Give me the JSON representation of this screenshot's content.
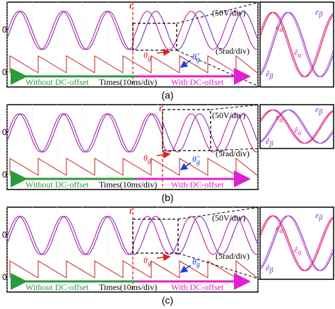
{
  "panels": [
    {
      "caption": "(a)",
      "zero_labels": [
        "0",
        "0"
      ],
      "t_label": "t",
      "voltage_scale": "(50V/div)",
      "angle_scale": "(5rad/div)",
      "theta": {
        "symbol": "θ",
        "sub": "g"
      },
      "theta_hat": {
        "symbol": "θ̂",
        "sub": "g"
      },
      "left_label": "Without DC-offset",
      "time_scale": "Times(10ms/div)",
      "right_label": "With DC-offset",
      "inset": {
        "e_alpha": {
          "symbol": "e",
          "sub": "α"
        },
        "e_beta": {
          "symbol": "e",
          "sub": "β"
        },
        "e_alpha_hat": {
          "symbol": "ê",
          "sub": "α"
        },
        "e_beta_hat": {
          "symbol": "ê",
          "sub": "β"
        }
      }
    },
    {
      "caption": "(b)",
      "zero_labels": [
        "0",
        "0"
      ],
      "t_label": "t",
      "voltage_scale": "(50V/div)",
      "angle_scale": "(5rad/div)",
      "theta": {
        "symbol": "θ",
        "sub": "g"
      },
      "theta_hat": {
        "symbol": "θ̂",
        "sub": "g"
      },
      "left_label": "Without DC-offset",
      "time_scale": "Times(10ms/div)",
      "right_label": "With DC-offset",
      "inset": {
        "e_alpha": {
          "symbol": "e",
          "sub": "α"
        },
        "e_beta": {
          "symbol": "e",
          "sub": "β"
        },
        "e_alpha_hat": {
          "symbol": "ê",
          "sub": "α"
        },
        "e_beta_hat": {
          "symbol": "ê",
          "sub": "β"
        }
      }
    },
    {
      "caption": "(c)",
      "zero_labels": [
        "0",
        "0"
      ],
      "t_label": "t",
      "voltage_scale": "(50V/div)",
      "angle_scale": "(5rad/div)",
      "theta": {
        "symbol": "θ",
        "sub": "g"
      },
      "theta_hat": {
        "symbol": "θ̂",
        "sub": "g"
      },
      "left_label": "Without DC-offset",
      "time_scale": "Times(10ms/div)",
      "right_label": "With DC-offset",
      "inset": {
        "e_alpha": {
          "symbol": "e",
          "sub": "α"
        },
        "e_beta": {
          "symbol": "e",
          "sub": "β"
        },
        "e_alpha_hat": {
          "symbol": "ê",
          "sub": "α"
        },
        "e_beta_hat": {
          "symbol": "ê",
          "sub": "β"
        }
      }
    }
  ]
}
